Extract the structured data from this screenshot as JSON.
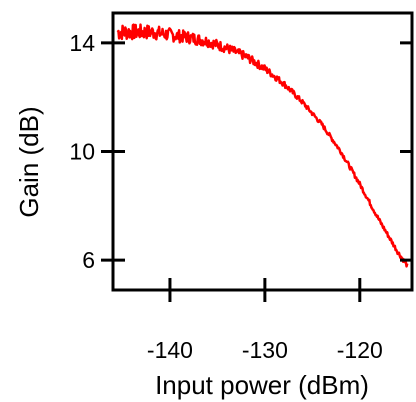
{
  "chart_data": {
    "type": "line",
    "title": "",
    "xlabel": "Input power (dBm)",
    "ylabel": "Gain (dB)",
    "xlim": [
      -146,
      -114.5
    ],
    "ylim": [
      4.9,
      15.1
    ],
    "xticks": [
      -140,
      -130,
      -120
    ],
    "xtick_labels": [
      "-140",
      "-130",
      "-120"
    ],
    "yticks": [
      6,
      10,
      14
    ],
    "ytick_labels": [
      "6",
      "10",
      "14"
    ],
    "grid": false,
    "legend": "none",
    "series": [
      {
        "color": "#ff0000",
        "noisy": true,
        "x": [
          -145.5,
          -144,
          -142,
          -140,
          -138,
          -136,
          -134,
          -132,
          -130,
          -128,
          -126,
          -124,
          -122,
          -120,
          -118,
          -116,
          -115
        ],
        "y": [
          14.4,
          14.4,
          14.4,
          14.3,
          14.2,
          14.05,
          13.8,
          13.5,
          13.05,
          12.5,
          11.8,
          11.0,
          10.0,
          8.8,
          7.5,
          6.3,
          5.8
        ]
      }
    ]
  }
}
